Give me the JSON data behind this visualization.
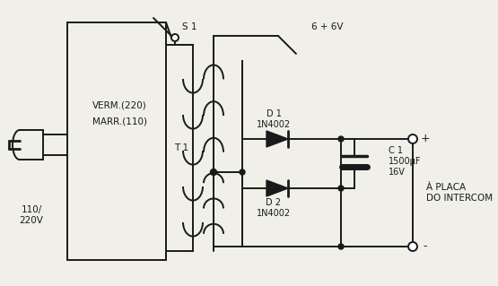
{
  "bg_color": "#f0f0e8",
  "line_color": "#1a1a1a",
  "labels": {
    "voltage": "110/\n220V",
    "switch": "S 1",
    "verm": "VERM.(220)",
    "marr": "MARR.(110)",
    "transformer": "T 1",
    "diode1": "D 1\n1N4002",
    "diode2": "D 2\n1N4002",
    "cap": "C 1\n1500μF\n16V",
    "voltage_tap": "6 + 6V",
    "output": "À PLACA\nDO INTERCOM",
    "plus": "+",
    "minus": "-"
  }
}
